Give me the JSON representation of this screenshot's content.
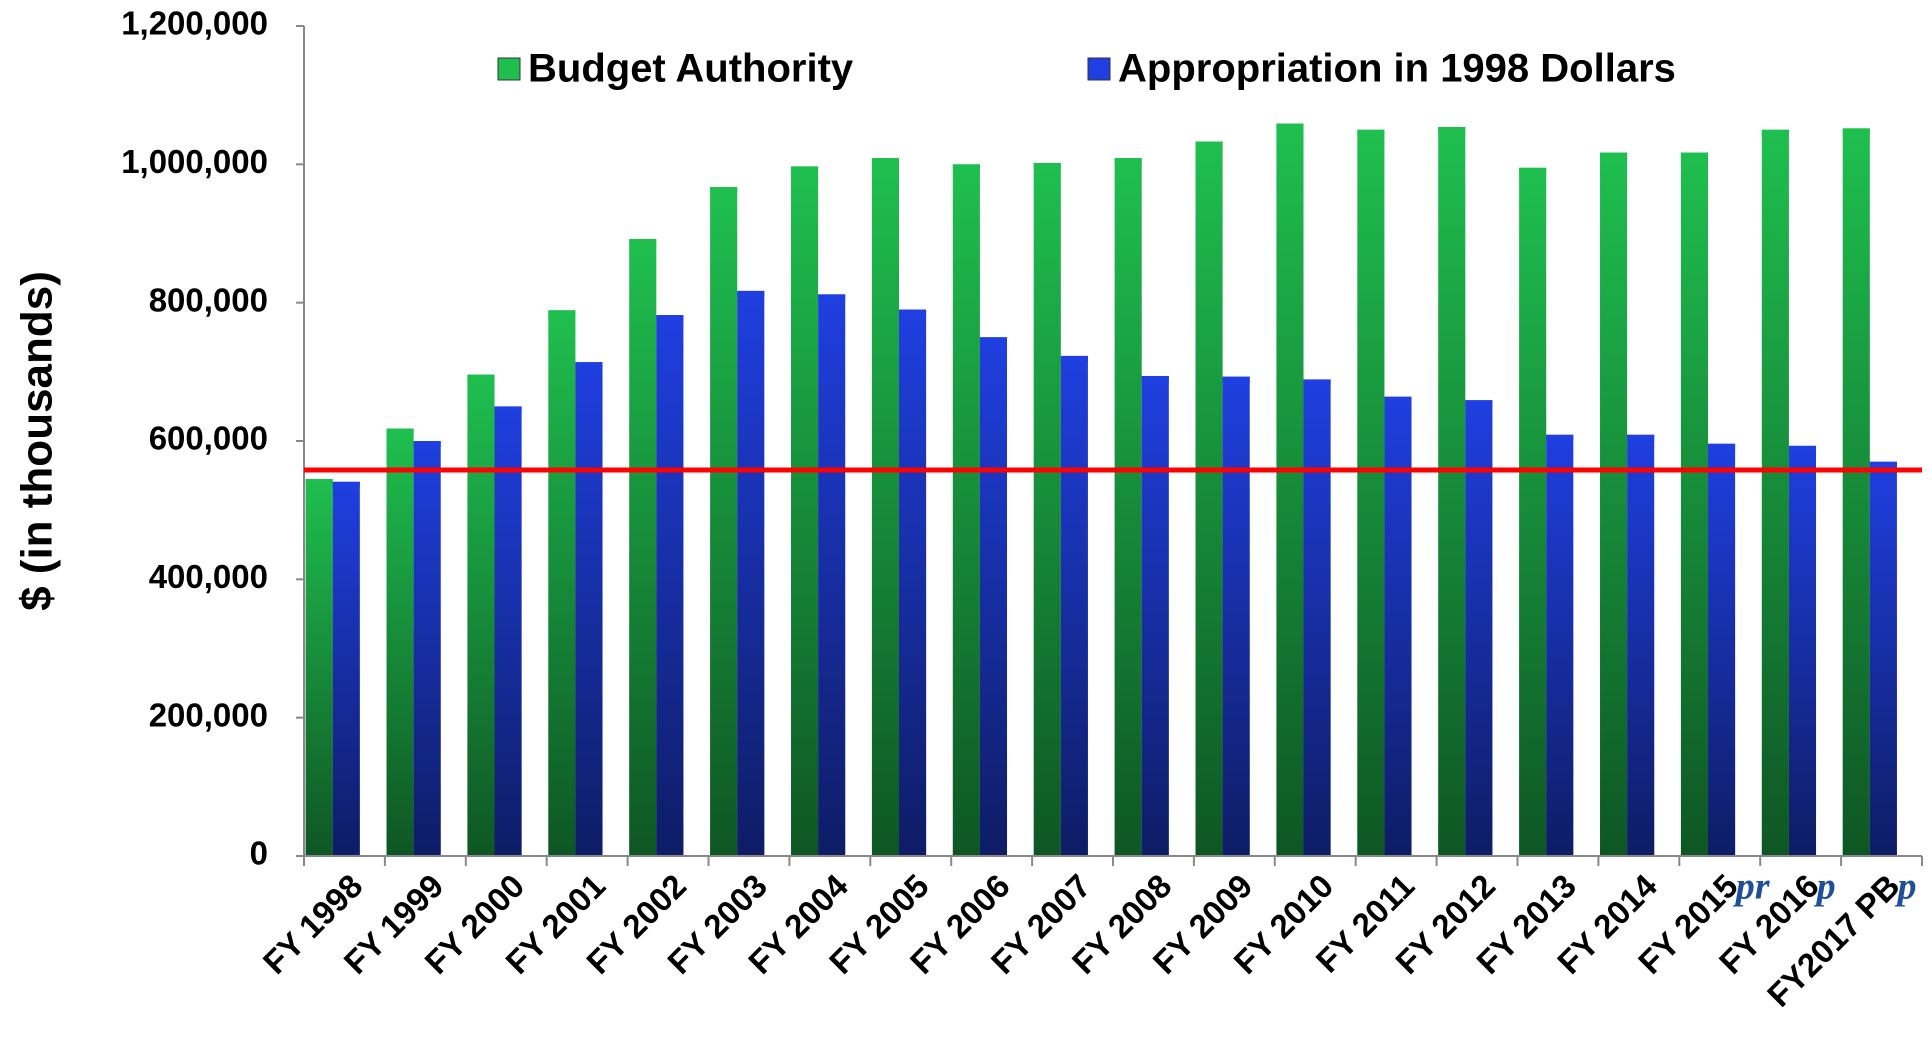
{
  "chart_data": {
    "type": "bar",
    "y_label": "$ (in thousands)",
    "categories": [
      "FY 1998",
      "FY 1999",
      "FY 2000",
      "FY 2001",
      "FY 2002",
      "FY 2003",
      "FY 2004",
      "FY 2005",
      "FY 2006",
      "FY 2007",
      "FY 2008",
      "FY 2009",
      "FY 2010",
      "FY 2011",
      "FY 2012",
      "FY 2013",
      "FY 2014",
      "FY 2015",
      "FY 2016",
      "FY2017 PB"
    ],
    "category_notes": [
      null,
      null,
      null,
      null,
      null,
      null,
      null,
      null,
      null,
      null,
      null,
      null,
      null,
      null,
      null,
      null,
      null,
      "pr",
      "p",
      "p"
    ],
    "series": [
      {
        "name": "Budget Authority",
        "color": "#1fbf4f",
        "values": [
          545000,
          618000,
          696000,
          789000,
          892000,
          967000,
          997000,
          1009000,
          1000000,
          1002000,
          1009000,
          1033000,
          1059000,
          1050000,
          1054000,
          995000,
          1017000,
          1017000,
          1050000,
          1052000
        ]
      },
      {
        "name": "Appropriation in 1998 Dollars",
        "color": "#1f3fe0",
        "values": [
          541000,
          600000,
          650000,
          714000,
          782000,
          817000,
          812000,
          790000,
          750000,
          723000,
          694000,
          693000,
          689000,
          664000,
          659000,
          609000,
          609000,
          596000,
          593000,
          570000
        ]
      }
    ],
    "reference_line": {
      "value": 558000,
      "color": "#ff0000"
    },
    "ylim": [
      0,
      1200000
    ],
    "yticks": [
      0,
      {
        "value": 200000,
        "label": "200,000"
      },
      {
        "value": 400000,
        "label": "400,000"
      },
      {
        "value": 600000,
        "label": "600,000"
      },
      {
        "value": 800000,
        "label": "800,000"
      },
      {
        "value": 1000000,
        "label": "1,000,000"
      },
      {
        "value": 1200000,
        "label": "1,200,000"
      }
    ],
    "grid": false,
    "legend": "top"
  }
}
